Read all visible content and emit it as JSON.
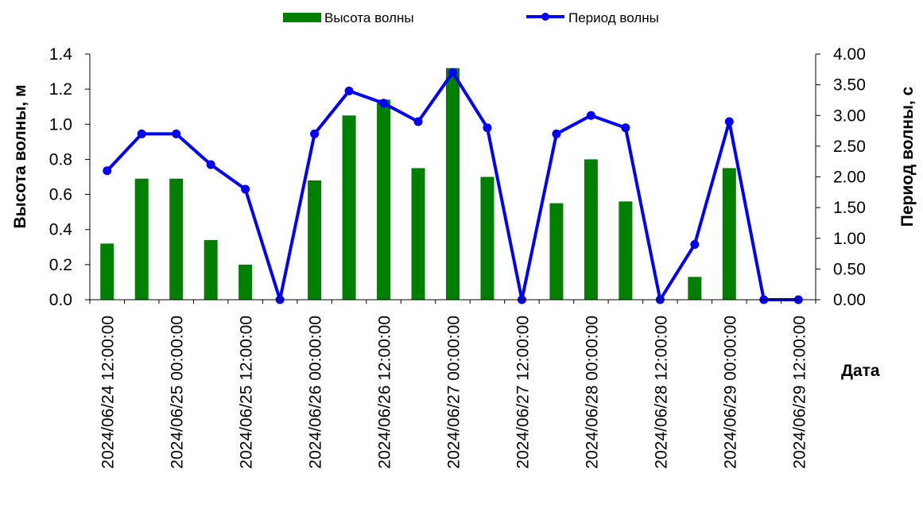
{
  "chart_data": {
    "type": "bar",
    "title": "",
    "xlabel": "Дата",
    "ylabel_left": "Высота волны, м",
    "ylabel_right": "Период волны, с",
    "ylim_left": [
      0,
      1.4
    ],
    "ylim_right": [
      0,
      4.0
    ],
    "yticks_left": [
      "0.0",
      "0.2",
      "0.4",
      "0.6",
      "0.8",
      "1.0",
      "1.2",
      "1.4"
    ],
    "yticks_right": [
      "0.00",
      "0.50",
      "1.00",
      "1.50",
      "2.00",
      "2.50",
      "3.00",
      "3.50",
      "4.00"
    ],
    "x": [
      "2024-06-24 12:00:00",
      "2024-06-24 18:00:00",
      "2024-06-25 00:00:00",
      "2024-06-25 06:00:00",
      "2024-06-25 12:00:00",
      "2024-06-25 18:00:00",
      "2024-06-26 00:00:00",
      "2024-06-26 06:00:00",
      "2024-06-26 12:00:00",
      "2024-06-26 18:00:00",
      "2024-06-27 00:00:00",
      "2024-06-27 06:00:00",
      "2024-06-27 12:00:00",
      "2024-06-27 18:00:00",
      "2024-06-28 00:00:00",
      "2024-06-28 06:00:00",
      "2024-06-28 12:00:00",
      "2024-06-28 18:00:00",
      "2024-06-29 00:00:00",
      "2024-06-29 06:00:00",
      "2024-06-29 12:00:00"
    ],
    "x_tick_labels": [
      "2024/06/24 12:00:00",
      "2024/06/25 00:00:00",
      "2024/06/25 12:00:00",
      "2024/06/26 00:00:00",
      "2024/06/26 12:00:00",
      "2024/06/27 00:00:00",
      "2024/06/27 12:00:00",
      "2024/06/28 00:00:00",
      "2024/06/28 12:00:00",
      "2024/06/29 00:00:00",
      "2024/06/29 12:00:00"
    ],
    "series": [
      {
        "name": "Высота волны",
        "type": "bar",
        "axis": "left",
        "color": "#008000",
        "values": [
          0.32,
          0.69,
          0.69,
          0.34,
          0.2,
          0.0,
          0.68,
          1.05,
          1.14,
          0.75,
          1.32,
          0.7,
          0.0,
          0.55,
          0.8,
          0.56,
          0.0,
          0.13,
          0.75,
          0.0,
          0.0
        ]
      },
      {
        "name": "Период волны",
        "type": "line",
        "axis": "right",
        "color": "#0000FF",
        "values": [
          2.1,
          2.7,
          2.7,
          2.2,
          1.8,
          0.0,
          2.7,
          3.4,
          3.2,
          2.9,
          3.7,
          2.8,
          0.0,
          2.7,
          3.0,
          2.8,
          0.0,
          0.9,
          2.9,
          0.0,
          0.0
        ]
      }
    ],
    "legend_position": "top-center",
    "grid": false
  }
}
